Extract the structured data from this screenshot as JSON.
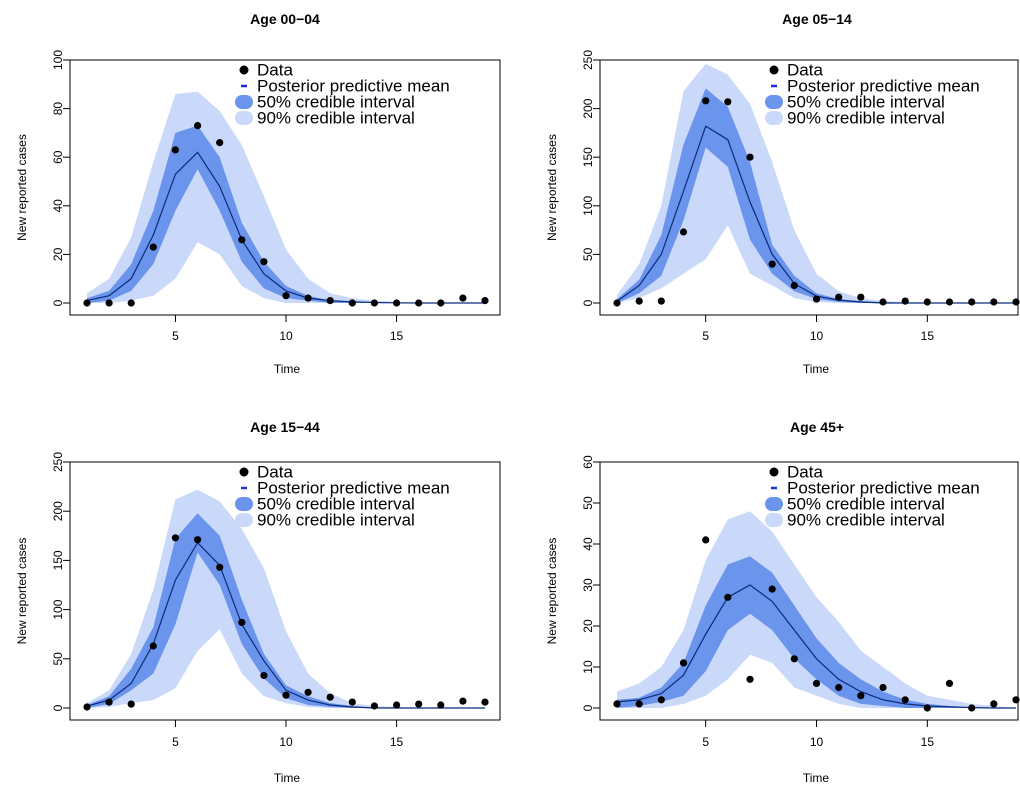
{
  "colors": {
    "data": "#000000",
    "mean": "#0a2a7a",
    "legend_mean": "#1a2ee0",
    "ci50": "#6b95ec",
    "ci90": "#cad9fa"
  },
  "legend": {
    "data": "Data",
    "mean": "Posterior predictive mean",
    "ci50": "50% credible interval",
    "ci90": "90% credible interval"
  },
  "chart_data": [
    {
      "type": "line",
      "title": "Age 00−04",
      "xlabel": "Time",
      "ylabel": "New reported cases",
      "xlim": [
        1,
        19
      ],
      "ylim": [
        0,
        100
      ],
      "xticks": [
        5,
        10,
        15
      ],
      "yticks": [
        0,
        20,
        40,
        60,
        80,
        100
      ],
      "x": [
        1,
        2,
        3,
        4,
        5,
        6,
        7,
        8,
        9,
        10,
        11,
        12,
        13,
        14,
        15,
        16,
        17,
        18,
        19
      ],
      "data": [
        0,
        0,
        0,
        23,
        63,
        73,
        66,
        26,
        17,
        3,
        2,
        1,
        0,
        0,
        0,
        0,
        0,
        2,
        1
      ],
      "mean": [
        1,
        3,
        10,
        28,
        53,
        62,
        48,
        26,
        12,
        5,
        2,
        1,
        0.5,
        0.2,
        0.1,
        0,
        0,
        0,
        0
      ],
      "ci50_lower": [
        0,
        1,
        5,
        16,
        38,
        55,
        38,
        17,
        6,
        2,
        1,
        0,
        0,
        0,
        0,
        0,
        0,
        0,
        0
      ],
      "ci50_upper": [
        2,
        5,
        16,
        38,
        70,
        73,
        60,
        33,
        17,
        7,
        3,
        1,
        0.5,
        0.2,
        0,
        0,
        0,
        0,
        0
      ],
      "ci90_lower": [
        0,
        0,
        1,
        3,
        10,
        25,
        20,
        7,
        2,
        0,
        0,
        0,
        0,
        0,
        0,
        0,
        0,
        0,
        0
      ],
      "ci90_upper": [
        4,
        10,
        27,
        58,
        86,
        87,
        79,
        65,
        44,
        22,
        10,
        4,
        2,
        1,
        0.5,
        0,
        0,
        0,
        0
      ],
      "grid": false,
      "legend_position": "top-right"
    },
    {
      "type": "line",
      "title": "Age 05−14",
      "xlabel": "Time",
      "ylabel": "New reported cases",
      "xlim": [
        1,
        19
      ],
      "ylim": [
        0,
        250
      ],
      "xticks": [
        5,
        10,
        15
      ],
      "yticks": [
        0,
        50,
        100,
        150,
        200,
        250
      ],
      "x": [
        1,
        2,
        3,
        4,
        5,
        6,
        7,
        8,
        9,
        10,
        11,
        12,
        13,
        14,
        15,
        16,
        17,
        18,
        19
      ],
      "data": [
        0,
        2,
        2,
        73,
        208,
        207,
        150,
        40,
        18,
        4,
        6,
        6,
        1,
        2,
        1,
        1,
        1,
        1,
        1
      ],
      "mean": [
        2,
        18,
        50,
        115,
        182,
        168,
        104,
        50,
        20,
        7,
        3,
        1,
        0,
        0,
        0,
        0,
        0,
        0,
        0
      ],
      "ci50_lower": [
        0,
        10,
        28,
        85,
        160,
        140,
        65,
        30,
        12,
        4,
        1,
        0,
        0,
        0,
        0,
        0,
        0,
        0,
        0
      ],
      "ci50_upper": [
        4,
        24,
        70,
        163,
        221,
        202,
        145,
        60,
        28,
        10,
        4,
        2,
        1,
        0,
        0,
        0,
        0,
        0,
        0
      ],
      "ci90_lower": [
        0,
        5,
        15,
        30,
        45,
        80,
        30,
        18,
        5,
        1,
        0,
        0,
        0,
        0,
        0,
        0,
        0,
        0,
        0
      ],
      "ci90_upper": [
        8,
        40,
        100,
        218,
        246,
        235,
        205,
        145,
        75,
        30,
        12,
        5,
        2,
        1,
        0,
        0,
        0,
        0,
        0
      ],
      "grid": false,
      "legend_position": "top-right"
    },
    {
      "type": "line",
      "title": "Age 15−44",
      "xlabel": "Time",
      "ylabel": "New reported cases",
      "xlim": [
        1,
        19
      ],
      "ylim": [
        0,
        250
      ],
      "xticks": [
        5,
        10,
        15
      ],
      "yticks": [
        0,
        50,
        100,
        150,
        200,
        250
      ],
      "x": [
        1,
        2,
        3,
        4,
        5,
        6,
        7,
        8,
        9,
        10,
        11,
        12,
        13,
        14,
        15,
        16,
        17,
        18,
        19
      ],
      "data": [
        1,
        6,
        4,
        63,
        173,
        171,
        143,
        87,
        33,
        13,
        16,
        11,
        6,
        2,
        3,
        4,
        3,
        7,
        6
      ],
      "mean": [
        2,
        8,
        25,
        65,
        130,
        168,
        145,
        85,
        48,
        18,
        8,
        3,
        1,
        0,
        0,
        0,
        0,
        0,
        0
      ],
      "ci50_lower": [
        0,
        4,
        18,
        35,
        85,
        158,
        125,
        65,
        30,
        10,
        3,
        1,
        0,
        0,
        0,
        0,
        0,
        0,
        0
      ],
      "ci50_upper": [
        3,
        12,
        40,
        82,
        172,
        198,
        175,
        110,
        55,
        23,
        12,
        5,
        2,
        0,
        0,
        0,
        0,
        0,
        0
      ],
      "ci90_lower": [
        0,
        1,
        5,
        8,
        20,
        58,
        80,
        35,
        12,
        5,
        1,
        0,
        0,
        0,
        0,
        0,
        0,
        0,
        0
      ],
      "ci90_upper": [
        5,
        18,
        55,
        120,
        212,
        222,
        210,
        182,
        142,
        78,
        35,
        15,
        5,
        2,
        1,
        0,
        0,
        0,
        0
      ],
      "grid": false,
      "legend_position": "top-right"
    },
    {
      "type": "line",
      "title": "Age 45+",
      "xlabel": "Time",
      "ylabel": "New reported cases",
      "xlim": [
        1,
        19
      ],
      "ylim": [
        0,
        62
      ],
      "xticks": [
        5,
        10,
        15
      ],
      "yticks": [
        0,
        10,
        20,
        30,
        40,
        50,
        60
      ],
      "x": [
        1,
        2,
        3,
        4,
        5,
        6,
        7,
        8,
        9,
        10,
        11,
        12,
        13,
        14,
        15,
        16,
        17,
        18,
        19
      ],
      "data": [
        1,
        1,
        2,
        11,
        41,
        27,
        7,
        29,
        12,
        6,
        5,
        3,
        5,
        2,
        0,
        6,
        0,
        1,
        2
      ],
      "mean": [
        1.5,
        2,
        3.5,
        8,
        18,
        27,
        30,
        26,
        19,
        12,
        7,
        4,
        2,
        1,
        0.5,
        0.3,
        0.1,
        0,
        0
      ],
      "ci50_lower": [
        0,
        0.5,
        1.5,
        3,
        9,
        19,
        23,
        19,
        12,
        7,
        3,
        1,
        0.5,
        0,
        0,
        0,
        0,
        0,
        0
      ],
      "ci50_upper": [
        2,
        2.5,
        5,
        11,
        25,
        35,
        37,
        33,
        25,
        17,
        11,
        7,
        4,
        2,
        1,
        0.5,
        0.2,
        0,
        0
      ],
      "ci90_lower": [
        0,
        0,
        0,
        1,
        3,
        7,
        13,
        11,
        5,
        3,
        1,
        0,
        0,
        0,
        0,
        0,
        0,
        0,
        0
      ],
      "ci90_upper": [
        4,
        6,
        10,
        19,
        36,
        46,
        48,
        43,
        35,
        27,
        21,
        14,
        10,
        6,
        3,
        2,
        1,
        0.5,
        0
      ],
      "grid": false,
      "legend_position": "top-right"
    }
  ]
}
